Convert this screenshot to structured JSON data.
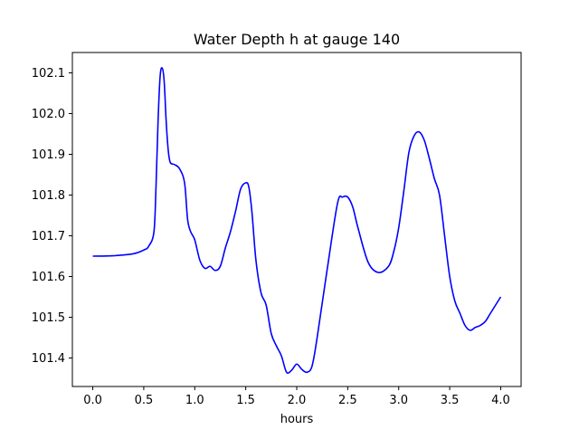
{
  "chart_data": {
    "type": "line",
    "title": "Water Depth h at gauge 140",
    "xlabel": "hours",
    "ylabel": "",
    "xlim": [
      -0.2,
      4.2
    ],
    "ylim": [
      101.33,
      102.15
    ],
    "xticks": [
      0.0,
      0.5,
      1.0,
      1.5,
      2.0,
      2.5,
      3.0,
      3.5,
      4.0
    ],
    "xtick_labels": [
      "0.0",
      "0.5",
      "1.0",
      "1.5",
      "2.0",
      "2.5",
      "3.0",
      "3.5",
      "4.0"
    ],
    "yticks": [
      101.4,
      101.5,
      101.6,
      101.7,
      101.8,
      101.9,
      102.0,
      102.1
    ],
    "ytick_labels": [
      "101.4",
      "101.5",
      "101.6",
      "101.7",
      "101.8",
      "101.9",
      "102.0",
      "102.1"
    ],
    "grid": false,
    "legend": "none",
    "series": [
      {
        "color": "#0000ff",
        "x": [
          0.0,
          0.2,
          0.4,
          0.5,
          0.55,
          0.6,
          0.62,
          0.64,
          0.66,
          0.68,
          0.7,
          0.72,
          0.74,
          0.76,
          0.8,
          0.85,
          0.9,
          0.93,
          0.96,
          1.0,
          1.05,
          1.1,
          1.15,
          1.2,
          1.25,
          1.3,
          1.35,
          1.4,
          1.45,
          1.5,
          1.53,
          1.56,
          1.6,
          1.65,
          1.7,
          1.75,
          1.8,
          1.85,
          1.9,
          1.95,
          2.0,
          2.05,
          2.1,
          2.15,
          2.2,
          2.3,
          2.4,
          2.45,
          2.5,
          2.55,
          2.6,
          2.7,
          2.8,
          2.9,
          2.95,
          3.0,
          3.05,
          3.1,
          3.15,
          3.2,
          3.25,
          3.3,
          3.35,
          3.4,
          3.45,
          3.5,
          3.55,
          3.6,
          3.65,
          3.7,
          3.75,
          3.8,
          3.85,
          3.9,
          4.0
        ],
        "y": [
          101.65,
          101.651,
          101.656,
          101.665,
          101.675,
          101.71,
          101.82,
          101.98,
          102.09,
          102.112,
          102.08,
          101.98,
          101.91,
          101.88,
          101.875,
          101.865,
          101.83,
          101.74,
          101.71,
          101.69,
          101.64,
          101.62,
          101.625,
          101.615,
          101.625,
          101.67,
          101.71,
          101.76,
          101.815,
          101.83,
          101.82,
          101.76,
          101.64,
          101.56,
          101.53,
          101.46,
          101.43,
          101.405,
          101.365,
          101.37,
          101.385,
          101.372,
          101.365,
          101.38,
          101.45,
          101.62,
          101.78,
          101.795,
          101.795,
          101.77,
          101.72,
          101.635,
          101.61,
          101.625,
          101.66,
          101.72,
          101.81,
          101.905,
          101.945,
          101.955,
          101.935,
          101.89,
          101.84,
          101.8,
          101.7,
          101.6,
          101.54,
          101.51,
          101.48,
          101.468,
          101.475,
          101.48,
          101.49,
          101.51,
          101.55
        ]
      }
    ]
  }
}
